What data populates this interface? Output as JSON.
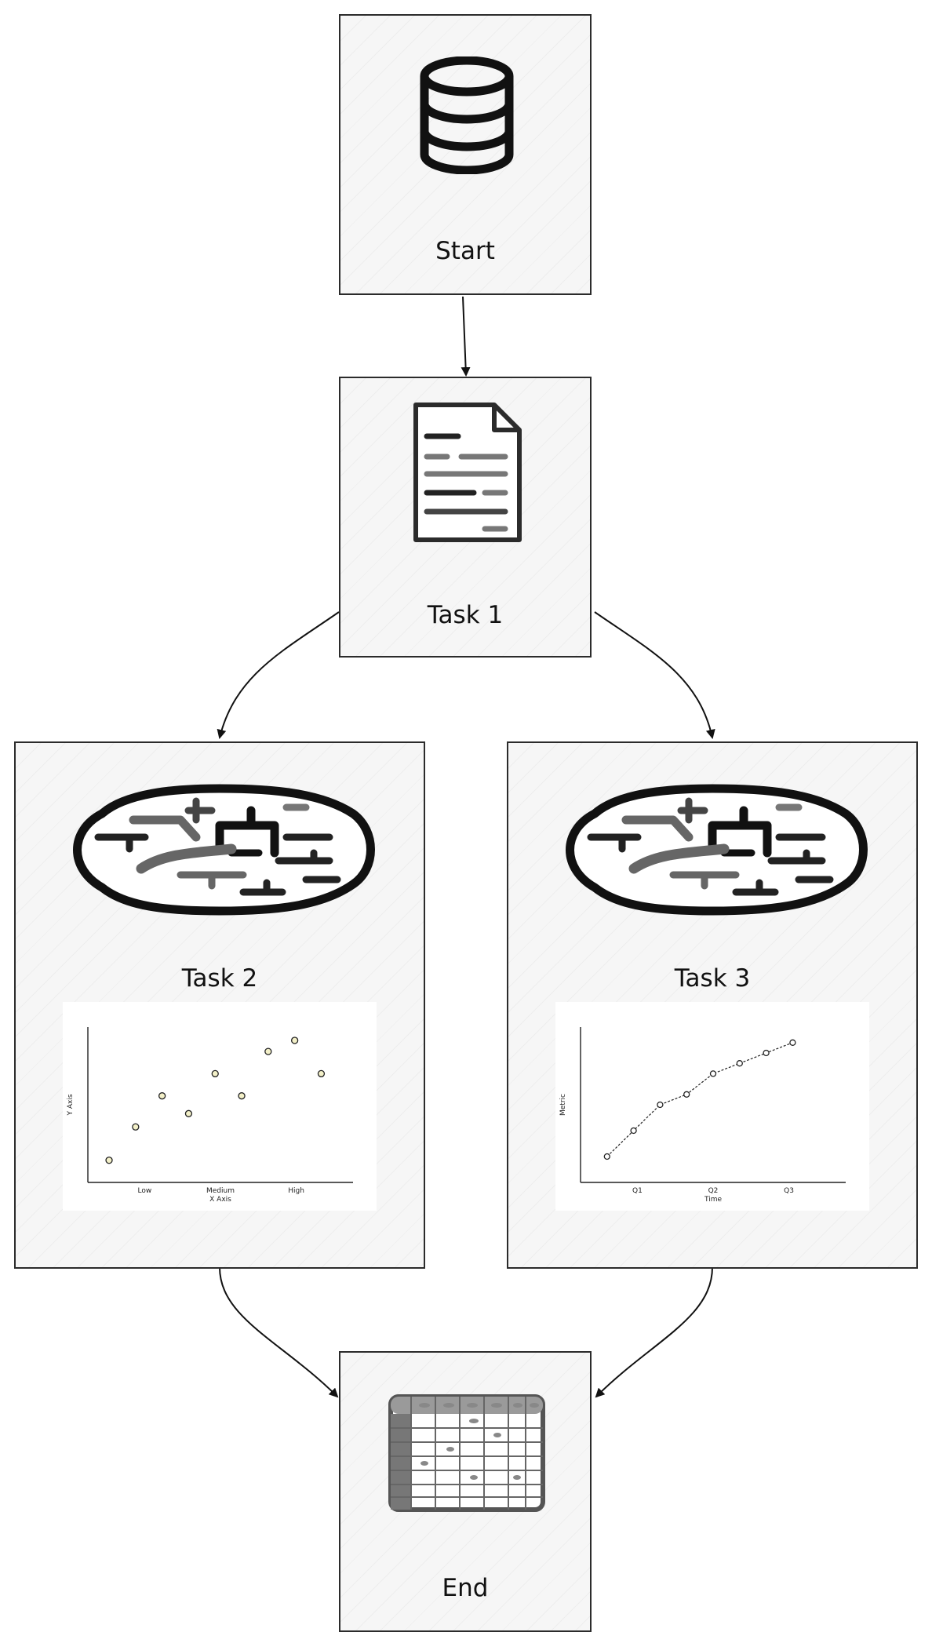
{
  "nodes": {
    "start": {
      "label": "Start",
      "icon": "database-icon"
    },
    "task1": {
      "label": "Task 1",
      "icon": "document-icon"
    },
    "task2": {
      "label": "Task 2",
      "icon": "brain-icon"
    },
    "task3": {
      "label": "Task 3",
      "icon": "brain-icon"
    },
    "end": {
      "label": "End",
      "icon": "spreadsheet-icon"
    }
  },
  "edges": [
    {
      "from": "Start",
      "to": "Task 1"
    },
    {
      "from": "Task 1",
      "to": "Task 2"
    },
    {
      "from": "Task 1",
      "to": "Task 3"
    },
    {
      "from": "Task 2",
      "to": "End"
    },
    {
      "from": "Task 3",
      "to": "End"
    }
  ],
  "chart_data": [
    {
      "type": "scatter",
      "categories": [
        "Low",
        "Medium",
        "High"
      ],
      "x": [
        0.4,
        0.9,
        1.4,
        1.9,
        2.4,
        2.9,
        3.4,
        3.9,
        4.4
      ],
      "y": [
        1.0,
        2.5,
        3.9,
        3.1,
        4.9,
        3.9,
        5.9,
        6.4,
        4.9
      ],
      "xlabel": "X Axis",
      "ylabel": "Y Axis",
      "xlim": [
        0,
        5
      ],
      "ylim": [
        0,
        7
      ]
    },
    {
      "type": "line",
      "categories": [
        "Q1",
        "Q2",
        "Q3"
      ],
      "x": [
        0.5,
        1.0,
        1.5,
        2.0,
        2.5,
        3.0,
        3.5,
        4.0
      ],
      "y": [
        1.0,
        2.0,
        3.0,
        3.4,
        4.2,
        4.6,
        5.0,
        5.4
      ],
      "xlabel": "Time",
      "ylabel": "Metric",
      "xlim": [
        0,
        5
      ],
      "ylim": [
        0,
        6
      ]
    }
  ]
}
